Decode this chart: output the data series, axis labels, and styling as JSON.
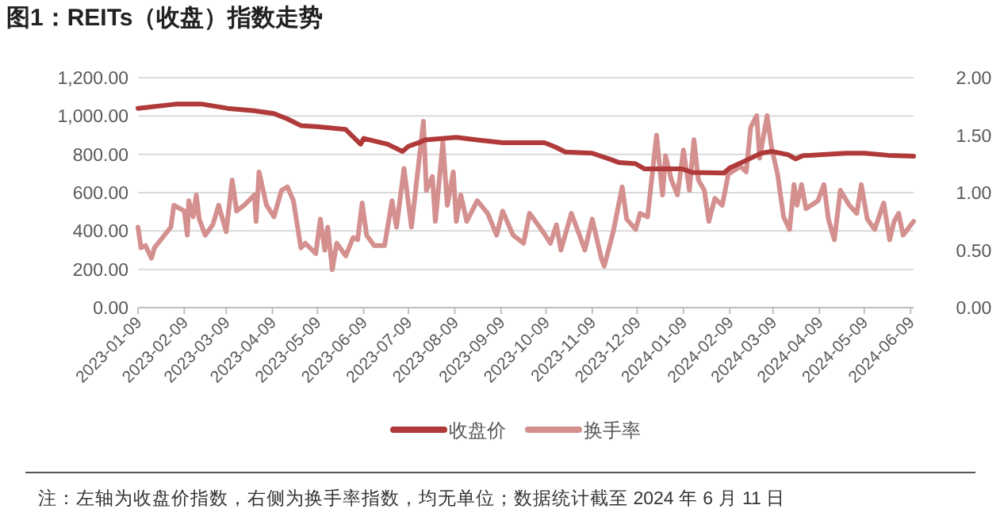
{
  "chart_data": {
    "type": "line",
    "title": "图1：REITs（收盘）指数走势",
    "xlim": [
      "2023-01-09",
      "2024-06-11"
    ],
    "xticks": [
      "2023-01-09",
      "2023-02-09",
      "2023-03-09",
      "2023-04-09",
      "2023-05-09",
      "2023-06-09",
      "2023-07-09",
      "2023-08-09",
      "2023-09-09",
      "2023-10-09",
      "2023-11-09",
      "2023-12-09",
      "2024-01-09",
      "2024-02-09",
      "2024-03-09",
      "2024-04-09",
      "2024-05-09",
      "2024-06-09"
    ],
    "ylim": [
      0,
      1200
    ],
    "yticks": [
      {
        "value": 0,
        "label": "0.00"
      },
      {
        "value": 200,
        "label": "200.00"
      },
      {
        "value": 400,
        "label": "400.00"
      },
      {
        "value": 600,
        "label": "600.00"
      },
      {
        "value": 800,
        "label": "800.00"
      },
      {
        "value": 1000,
        "label": "1,000.00"
      },
      {
        "value": 1200,
        "label": "1,200.00"
      }
    ],
    "y2lim": [
      0,
      2
    ],
    "y2ticks": [
      {
        "value": 0,
        "label": "0.00"
      },
      {
        "value": 0.5,
        "label": "0.50"
      },
      {
        "value": 1,
        "label": "1.00"
      },
      {
        "value": 1.5,
        "label": "1.50"
      },
      {
        "value": 2,
        "label": "2.00"
      }
    ],
    "grid": "y",
    "legend": "bottom",
    "marker": "none",
    "line_style": "solid",
    "annotations": [
      "注：左轴为收盘价指数，右侧为换手率指数，均无单位；数据统计截至 2024 年 6 月 11 日"
    ],
    "series": [
      {
        "name": "收盘价",
        "color": "#b03a3a",
        "x": [
          "2023-01-09",
          "2023-02-03",
          "2023-02-21",
          "2023-03-10",
          "2023-03-28",
          "2023-04-10",
          "2023-04-19",
          "2023-04-28",
          "2023-05-09",
          "2023-05-28",
          "2023-06-07",
          "2023-06-09",
          "2023-06-25",
          "2023-07-05",
          "2023-07-09",
          "2023-07-16",
          "2023-07-20",
          "2023-08-10",
          "2023-08-24",
          "2023-09-10",
          "2023-10-08",
          "2023-10-15",
          "2023-10-22",
          "2023-11-09",
          "2023-11-22",
          "2023-11-27",
          "2023-12-08",
          "2023-12-14",
          "2024-01-08",
          "2024-01-15",
          "2024-02-05",
          "2024-02-09",
          "2024-02-19",
          "2024-03-01",
          "2024-03-08",
          "2024-03-19",
          "2024-03-24",
          "2024-03-29",
          "2024-04-09",
          "2024-04-27",
          "2024-05-09",
          "2024-05-25",
          "2024-06-11"
        ],
        "values": [
          1040,
          1062,
          1062,
          1040,
          1027,
          1013,
          985,
          950,
          944,
          930,
          853,
          883,
          853,
          815,
          842,
          861,
          875,
          889,
          875,
          861,
          861,
          839,
          812,
          806,
          771,
          757,
          751,
          724,
          724,
          705,
          702,
          729,
          765,
          806,
          815,
          798,
          776,
          793,
          798,
          806,
          806,
          795,
          790
        ]
      },
      {
        "name": "换手率",
        "color": "#d48f8f",
        "axis": "y2",
        "x": [
          "2023-01-09",
          "2023-01-11",
          "2023-01-14",
          "2023-01-18",
          "2023-01-20",
          "2023-01-31",
          "2023-02-02",
          "2023-02-09",
          "2023-02-11",
          "2023-02-12",
          "2023-02-15",
          "2023-02-17",
          "2023-02-19",
          "2023-02-23",
          "2023-02-28",
          "2023-03-04",
          "2023-03-09",
          "2023-03-13",
          "2023-03-16",
          "2023-03-21",
          "2023-03-28",
          "2023-03-29",
          "2023-03-31",
          "2023-04-05",
          "2023-04-10",
          "2023-04-15",
          "2023-04-19",
          "2023-04-23",
          "2023-04-28",
          "2023-05-01",
          "2023-05-08",
          "2023-05-11",
          "2023-05-14",
          "2023-05-16",
          "2023-05-19",
          "2023-05-22",
          "2023-05-28",
          "2023-06-02",
          "2023-06-05",
          "2023-06-08",
          "2023-06-11",
          "2023-06-16",
          "2023-06-23",
          "2023-06-28",
          "2023-07-01",
          "2023-07-06",
          "2023-07-11",
          "2023-07-19",
          "2023-07-21",
          "2023-07-25",
          "2023-07-27",
          "2023-08-01",
          "2023-08-04",
          "2023-08-08",
          "2023-08-10",
          "2023-08-13",
          "2023-08-17",
          "2023-08-24",
          "2023-08-31",
          "2023-09-06",
          "2023-09-10",
          "2023-09-17",
          "2023-09-24",
          "2023-09-28",
          "2023-10-07",
          "2023-10-12",
          "2023-10-16",
          "2023-10-19",
          "2023-10-26",
          "2023-11-01",
          "2023-11-04",
          "2023-11-09",
          "2023-11-15",
          "2023-11-17",
          "2023-11-23",
          "2023-11-29",
          "2023-12-02",
          "2023-12-08",
          "2023-12-11",
          "2023-12-16",
          "2023-12-22",
          "2023-12-26",
          "2023-12-28",
          "2024-01-01",
          "2024-01-05",
          "2024-01-09",
          "2024-01-13",
          "2024-01-16",
          "2024-01-19",
          "2024-01-23",
          "2024-01-26",
          "2024-01-30",
          "2024-02-04",
          "2024-02-08",
          "2024-02-16",
          "2024-02-20",
          "2024-02-23",
          "2024-02-27",
          "2024-02-29",
          "2024-03-05",
          "2024-03-08",
          "2024-03-12",
          "2024-03-16",
          "2024-03-20",
          "2024-03-23",
          "2024-03-25",
          "2024-03-28",
          "2024-03-31",
          "2024-04-08",
          "2024-04-12",
          "2024-04-15",
          "2024-04-19",
          "2024-04-23",
          "2024-04-29",
          "2024-05-04",
          "2024-05-07",
          "2024-05-11",
          "2024-05-16",
          "2024-05-22",
          "2024-05-26",
          "2024-05-29",
          "2024-06-01",
          "2024-06-04",
          "2024-06-11"
        ],
        "values": [
          0.7,
          0.52,
          0.54,
          0.43,
          0.52,
          0.7,
          0.89,
          0.84,
          0.63,
          0.93,
          0.79,
          0.98,
          0.77,
          0.63,
          0.72,
          0.89,
          0.66,
          1.11,
          0.84,
          0.89,
          0.98,
          0.75,
          1.18,
          0.89,
          0.79,
          1.02,
          1.05,
          0.93,
          0.52,
          0.56,
          0.47,
          0.77,
          0.5,
          0.7,
          0.33,
          0.56,
          0.45,
          0.61,
          0.59,
          0.91,
          0.63,
          0.54,
          0.54,
          0.93,
          0.7,
          1.21,
          0.7,
          1.62,
          1.02,
          1.14,
          0.75,
          1.44,
          0.89,
          1.18,
          0.75,
          0.98,
          0.75,
          0.93,
          0.82,
          0.63,
          0.84,
          0.63,
          0.56,
          0.82,
          0.66,
          0.56,
          0.72,
          0.5,
          0.82,
          0.61,
          0.5,
          0.77,
          0.43,
          0.36,
          0.66,
          1.05,
          0.77,
          0.68,
          0.82,
          0.79,
          1.5,
          0.98,
          1.32,
          1.11,
          0.98,
          1.37,
          1.02,
          1.46,
          1.11,
          1.02,
          0.75,
          0.95,
          0.89,
          1.16,
          1.23,
          1.18,
          1.57,
          1.67,
          1.3,
          1.67,
          1.39,
          1.16,
          0.79,
          0.68,
          1.07,
          0.89,
          1.07,
          0.86,
          0.93,
          1.07,
          0.77,
          0.59,
          1.02,
          0.89,
          0.82,
          1.07,
          0.77,
          0.68,
          0.91,
          0.59,
          0.75,
          0.82,
          0.63,
          0.75
        ]
      }
    ]
  }
}
